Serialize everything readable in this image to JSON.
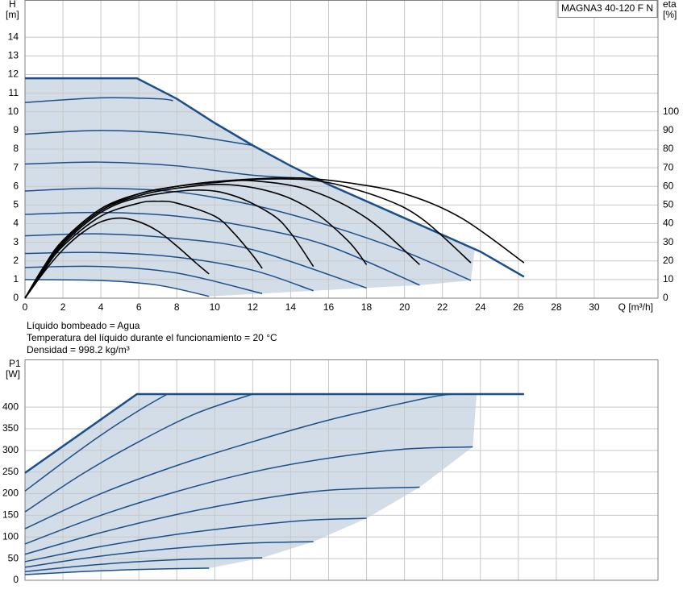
{
  "chart_data": [
    {
      "type": "line",
      "title": "MAGNA3 40-120 F N",
      "y_label": "H",
      "y_unit": "[m]",
      "y2_label": "eta",
      "y2_unit": "[%]",
      "x_label": "Q [m³/h]",
      "xlim": [
        0,
        33.36
      ],
      "xticks": [
        0,
        2,
        4,
        6,
        8,
        10,
        12,
        14,
        16,
        18,
        20,
        22,
        24,
        26,
        28,
        30
      ],
      "ylim": [
        0,
        16
      ],
      "yticks": [
        0,
        1,
        2,
        3,
        4,
        5,
        6,
        7,
        8,
        9,
        10,
        11,
        12,
        13,
        14
      ],
      "y2lim": [
        0,
        160
      ],
      "y2ticks": [
        0,
        10,
        20,
        30,
        40,
        50,
        60,
        70,
        80,
        90,
        100
      ],
      "grid": true,
      "area_color": "#d3dde7",
      "series": [
        {
          "color": "#1b4f8a",
          "smooth": false,
          "x": [
            0,
            5.9,
            8,
            10,
            12,
            14,
            16,
            18,
            20,
            22,
            24,
            26.3
          ],
          "values": [
            11.8,
            11.8,
            10.7,
            9.4,
            8.2,
            7.1,
            6.1,
            5.2,
            4.3,
            3.4,
            2.5,
            1.15
          ]
        },
        {
          "color": "#1b4f8a",
          "x": [
            0,
            4,
            7,
            7.8
          ],
          "values": [
            10.5,
            10.75,
            10.7,
            10.6
          ]
        },
        {
          "color": "#1b4f8a",
          "x": [
            0,
            4,
            8,
            12
          ],
          "values": [
            8.8,
            9.0,
            8.8,
            8.2
          ]
        },
        {
          "color": "#1b4f8a",
          "x": [
            0,
            4,
            8,
            12,
            15.5
          ],
          "values": [
            7.2,
            7.3,
            7.1,
            6.6,
            6.4
          ]
        },
        {
          "color": "#1b4f8a",
          "x": [
            0,
            4,
            8,
            12,
            16,
            20,
            23.5
          ],
          "values": [
            5.75,
            5.9,
            5.7,
            5.0,
            3.9,
            2.5,
            0.95
          ]
        },
        {
          "color": "#1b4f8a",
          "x": [
            0,
            4,
            8,
            12,
            16,
            20.8
          ],
          "values": [
            4.5,
            4.6,
            4.4,
            3.8,
            2.8,
            0.7
          ]
        },
        {
          "color": "#1b4f8a",
          "x": [
            0,
            4,
            8,
            12,
            18
          ],
          "values": [
            3.35,
            3.45,
            3.2,
            2.6,
            0.55
          ]
        },
        {
          "color": "#1b4f8a",
          "x": [
            0,
            4,
            8,
            12,
            15.2
          ],
          "values": [
            2.4,
            2.45,
            2.2,
            1.5,
            0.4
          ]
        },
        {
          "color": "#1b4f8a",
          "x": [
            0,
            4,
            8,
            12.5
          ],
          "values": [
            1.65,
            1.7,
            1.35,
            0.25
          ]
        },
        {
          "color": "#1b4f8a",
          "x": [
            0,
            4,
            7,
            9.7
          ],
          "values": [
            1.0,
            0.95,
            0.7,
            0.1
          ]
        },
        {
          "color": "#000000",
          "axis": "y2",
          "x": [
            0,
            1,
            2,
            3,
            4,
            5,
            6,
            7,
            8,
            9,
            9.7
          ],
          "values": [
            0,
            14,
            26,
            35,
            41,
            43,
            41,
            36,
            28,
            19,
            13
          ]
        },
        {
          "color": "#000000",
          "axis": "y2",
          "x": [
            0,
            1,
            2,
            4,
            6,
            7,
            8,
            10,
            11,
            12,
            12.5
          ],
          "values": [
            0,
            15,
            28,
            44,
            51,
            52,
            51,
            44,
            35,
            23,
            16
          ]
        },
        {
          "color": "#000000",
          "axis": "y2",
          "x": [
            0,
            1,
            2,
            4,
            6,
            9,
            11,
            13,
            14,
            15.2
          ],
          "values": [
            0,
            16,
            29,
            46,
            54,
            58,
            55,
            45,
            35,
            17
          ]
        },
        {
          "color": "#000000",
          "axis": "y2",
          "x": [
            0,
            1,
            2,
            4,
            6,
            8,
            10.5,
            13,
            15,
            17,
            18
          ],
          "values": [
            0,
            16,
            30,
            47,
            55,
            59,
            61,
            57,
            48,
            31,
            18
          ]
        },
        {
          "color": "#000000",
          "axis": "y2",
          "x": [
            0,
            1,
            2,
            4,
            6,
            8,
            10,
            12,
            15,
            18,
            20.8
          ],
          "values": [
            0,
            17,
            30,
            47,
            56,
            60,
            62,
            63,
            58,
            43,
            18
          ]
        },
        {
          "color": "#000000",
          "axis": "y2",
          "x": [
            0,
            1,
            2,
            4,
            6,
            8,
            10,
            13.5,
            16,
            19,
            21,
            23.5
          ],
          "values": [
            0,
            17,
            31,
            48,
            56,
            60,
            62.5,
            64,
            62,
            53,
            42,
            19
          ]
        },
        {
          "color": "#000000",
          "axis": "y2",
          "x": [
            0,
            1,
            2,
            4,
            6,
            8,
            10,
            12,
            14.5,
            17,
            20,
            23,
            26.3
          ],
          "values": [
            0,
            17,
            31,
            48,
            56,
            60,
            62.5,
            64,
            64.5,
            62,
            56,
            43,
            19
          ]
        }
      ]
    },
    {
      "type": "line",
      "y_label": "P1",
      "y_unit": "[W]",
      "xlim": [
        0,
        33.36
      ],
      "ylim": [
        0,
        510
      ],
      "yticks": [
        0,
        50,
        100,
        150,
        200,
        250,
        300,
        350,
        400
      ],
      "grid": true,
      "area_color": "#d3dde7",
      "series": [
        {
          "color": "#1b4f8a",
          "smooth": false,
          "x": [
            0,
            5.9,
            26.3
          ],
          "values": [
            248,
            430,
            430
          ]
        },
        {
          "color": "#1b4f8a",
          "x": [
            0,
            2,
            4,
            6,
            7.5
          ],
          "values": [
            206,
            272,
            335,
            392,
            430
          ]
        },
        {
          "color": "#1b4f8a",
          "x": [
            0,
            3,
            6,
            9,
            12
          ],
          "values": [
            158,
            245,
            320,
            385,
            430
          ]
        },
        {
          "color": "#1b4f8a",
          "x": [
            0,
            4,
            8,
            12,
            16,
            20,
            22.1,
            23.6
          ],
          "values": [
            119,
            200,
            265,
            320,
            370,
            410,
            428,
            430
          ]
        },
        {
          "color": "#1b4f8a",
          "x": [
            0,
            4,
            8,
            12,
            16,
            20,
            23.6
          ],
          "values": [
            84,
            150,
            205,
            250,
            282,
            303,
            308
          ]
        },
        {
          "color": "#1b4f8a",
          "x": [
            0,
            4,
            8,
            12,
            16,
            20.8
          ],
          "values": [
            60,
            110,
            152,
            185,
            208,
            215
          ]
        },
        {
          "color": "#1b4f8a",
          "x": [
            0,
            4,
            8,
            12,
            15,
            18
          ],
          "values": [
            43,
            78,
            106,
            127,
            139,
            143
          ]
        },
        {
          "color": "#1b4f8a",
          "x": [
            0,
            3,
            6,
            9,
            12,
            15.2
          ],
          "values": [
            30,
            50,
            66,
            78,
            86,
            89
          ]
        },
        {
          "color": "#1b4f8a",
          "x": [
            0,
            3,
            6,
            9,
            12.5
          ],
          "values": [
            20,
            33,
            43,
            49,
            52
          ]
        },
        {
          "color": "#1b4f8a",
          "x": [
            0,
            3,
            6,
            9.7
          ],
          "values": [
            13,
            20,
            25,
            28
          ]
        }
      ]
    }
  ],
  "info_lines": [
    "Líquido bombeado = Agua",
    "Temperatura del líquido durante el funcionamiento = 20 °C",
    "Densidad = 998.2 kg/m³"
  ]
}
